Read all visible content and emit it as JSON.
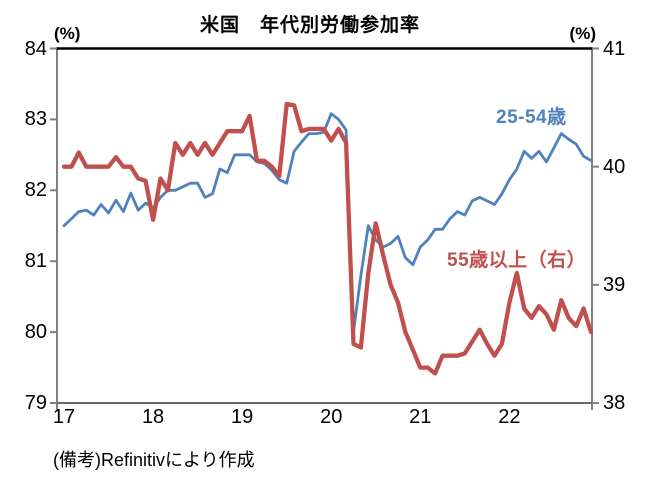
{
  "title": "米国　年代別労働参加率",
  "left_axis_unit": "(%)",
  "right_axis_unit": "(%)",
  "footnote": "(備考)Refinitivにより作成",
  "series_labels": {
    "blue": "25-54歳",
    "red": "55歳以上（右）"
  },
  "colors": {
    "blue": "#4F81BD",
    "red": "#C0504D",
    "axis_side": "#808080",
    "axis_bottom": "#6a6a6a",
    "axis_top": "#000000",
    "text": "#000000"
  },
  "chart_data": {
    "type": "line",
    "title": "米国　年代別労働参加率",
    "x": {
      "start": "2017-01",
      "end": "2022-12",
      "frequency": "monthly",
      "tick_labels": [
        "17",
        "18",
        "19",
        "20",
        "21",
        "22"
      ]
    },
    "left_axis": {
      "label": "(%)",
      "min": 79,
      "max": 84,
      "ticks": [
        84,
        83,
        82,
        81,
        80,
        79
      ]
    },
    "right_axis": {
      "label": "(%)",
      "min": 38,
      "max": 41,
      "ticks": [
        41,
        40,
        39,
        38
      ]
    },
    "grid": false,
    "series": [
      {
        "name": "25-54歳",
        "axis": "left",
        "color": "#4F81BD",
        "values": [
          81.5,
          81.6,
          81.7,
          81.72,
          81.65,
          81.8,
          81.68,
          81.86,
          81.7,
          81.96,
          81.72,
          81.82,
          81.75,
          81.9,
          82.0,
          82.0,
          82.05,
          82.1,
          82.1,
          81.9,
          81.95,
          82.3,
          82.25,
          82.5,
          82.5,
          82.5,
          82.4,
          82.38,
          82.28,
          82.15,
          82.1,
          82.55,
          82.68,
          82.8,
          82.8,
          82.82,
          83.08,
          83.0,
          82.85,
          80.0,
          80.8,
          81.5,
          81.3,
          81.2,
          81.25,
          81.35,
          81.05,
          80.95,
          81.2,
          81.3,
          81.45,
          81.45,
          81.6,
          81.7,
          81.65,
          81.85,
          81.9,
          81.85,
          81.8,
          81.95,
          82.15,
          82.3,
          82.55,
          82.45,
          82.55,
          82.4,
          82.6,
          82.8,
          82.72,
          82.65,
          82.48,
          82.42
        ]
      },
      {
        "name": "55歳以上（右）",
        "axis": "right",
        "color": "#C0504D",
        "values": [
          40.0,
          40.0,
          40.12,
          40.0,
          40.0,
          40.0,
          40.0,
          40.08,
          40.0,
          40.0,
          39.9,
          39.88,
          39.55,
          39.9,
          39.8,
          40.2,
          40.1,
          40.2,
          40.1,
          40.2,
          40.1,
          40.2,
          40.3,
          40.3,
          40.3,
          40.43,
          40.05,
          40.05,
          40.0,
          39.92,
          40.53,
          40.52,
          40.3,
          40.32,
          40.32,
          40.32,
          40.22,
          40.32,
          40.2,
          38.5,
          38.47,
          39.1,
          39.52,
          39.25,
          39.0,
          38.85,
          38.6,
          38.45,
          38.3,
          38.3,
          38.25,
          38.4,
          38.4,
          38.4,
          38.42,
          38.52,
          38.62,
          38.5,
          38.4,
          38.5,
          38.85,
          39.1,
          38.8,
          38.72,
          38.82,
          38.75,
          38.62,
          38.87,
          38.72,
          38.65,
          38.8,
          38.6
        ]
      }
    ]
  }
}
